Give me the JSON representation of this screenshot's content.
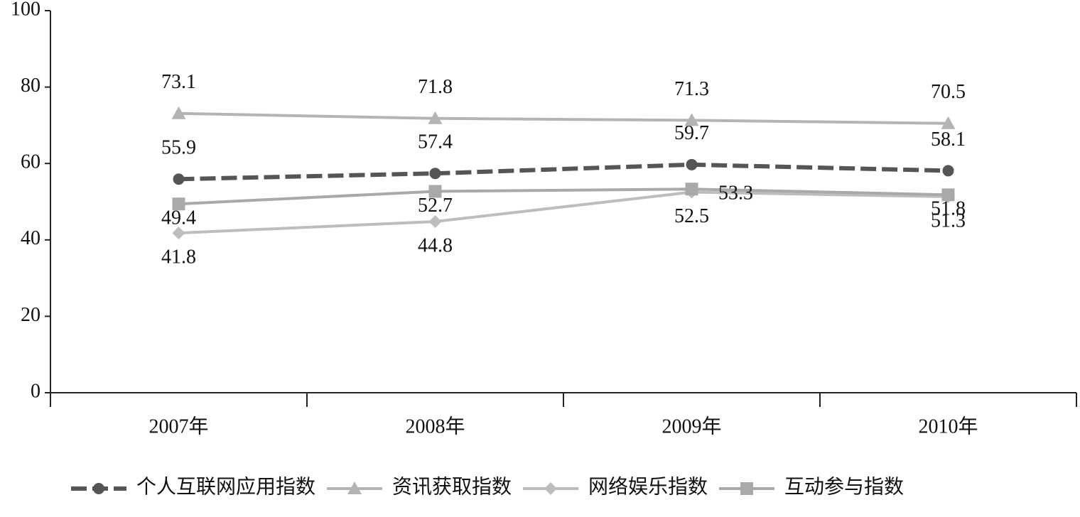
{
  "chart_data": {
    "type": "line",
    "categories": [
      "2007年",
      "2008年",
      "2009年",
      "2010年"
    ],
    "series": [
      {
        "name": "个人互联网应用指数",
        "color": "#555555",
        "values": [
          55.9,
          57.4,
          59.7,
          58.1
        ]
      },
      {
        "name": "资讯获取指数",
        "color": "#b4b4b4",
        "values": [
          73.1,
          71.8,
          71.3,
          70.5
        ]
      },
      {
        "name": "网络娱乐指数",
        "color": "#bdbdbd",
        "values": [
          41.8,
          44.8,
          52.5,
          51.3
        ]
      },
      {
        "name": "互动参与指数",
        "color": "#a9a9a9",
        "values": [
          49.4,
          52.7,
          53.3,
          51.8
        ]
      }
    ],
    "ylim": [
      0,
      100
    ],
    "yticks": [
      0,
      20,
      40,
      60,
      80,
      100
    ],
    "grid": false,
    "legend": "bottom"
  }
}
